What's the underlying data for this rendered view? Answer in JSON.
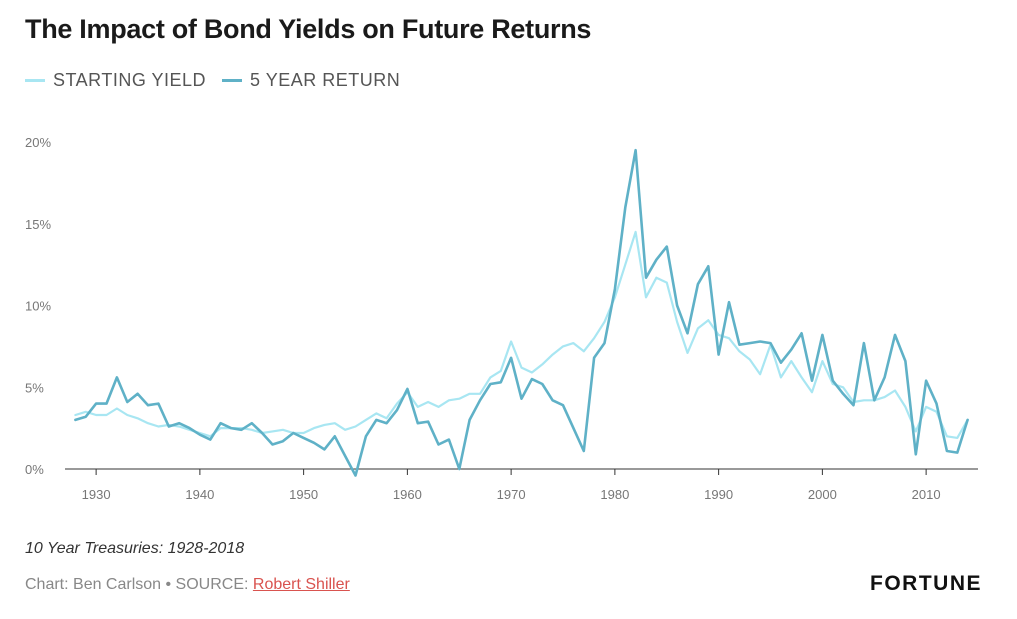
{
  "title": "The Impact of Bond Yields on Future Returns",
  "footnote": "10 Year Treasuries: 1928-2018",
  "credit": {
    "prefix": "Chart: Ben Carlson • SOURCE: ",
    "source_link": "Robert Shiller"
  },
  "brand": "FORTUNE",
  "colors": {
    "starting_yield": "#a8e6f2",
    "five_year_return": "#5fb1c7",
    "axis": "#333333",
    "tick_text": "#777777"
  },
  "chart_data": {
    "type": "line",
    "title": "The Impact of Bond Yields on Future Returns",
    "xlabel": "",
    "ylabel": "",
    "xlim": [
      1927,
      2015
    ],
    "ylim": [
      0,
      20
    ],
    "x_ticks": [
      1930,
      1940,
      1950,
      1960,
      1970,
      1980,
      1990,
      2000,
      2010
    ],
    "y_ticks": [
      0,
      5,
      10,
      15,
      20
    ],
    "y_tick_labels": [
      "0%",
      "5%",
      "10%",
      "15%",
      "20%"
    ],
    "grid": false,
    "legend_position": "top-left",
    "x": [
      1928,
      1929,
      1930,
      1931,
      1932,
      1933,
      1934,
      1935,
      1936,
      1937,
      1938,
      1939,
      1940,
      1941,
      1942,
      1943,
      1944,
      1945,
      1946,
      1947,
      1948,
      1949,
      1950,
      1951,
      1952,
      1953,
      1954,
      1955,
      1956,
      1957,
      1958,
      1959,
      1960,
      1961,
      1962,
      1963,
      1964,
      1965,
      1966,
      1967,
      1968,
      1969,
      1970,
      1971,
      1972,
      1973,
      1974,
      1975,
      1976,
      1977,
      1978,
      1979,
      1980,
      1981,
      1982,
      1983,
      1984,
      1985,
      1986,
      1987,
      1988,
      1989,
      1990,
      1991,
      1992,
      1993,
      1994,
      1995,
      1996,
      1997,
      1998,
      1999,
      2000,
      2001,
      2002,
      2003,
      2004,
      2005,
      2006,
      2007,
      2008,
      2009,
      2010,
      2011,
      2012,
      2013,
      2014
    ],
    "series": [
      {
        "name": "STARTING YIELD",
        "values": [
          3.3,
          3.5,
          3.3,
          3.3,
          3.7,
          3.3,
          3.1,
          2.8,
          2.6,
          2.7,
          2.6,
          2.4,
          2.2,
          2.0,
          2.5,
          2.5,
          2.5,
          2.4,
          2.2,
          2.3,
          2.4,
          2.2,
          2.2,
          2.5,
          2.7,
          2.8,
          2.4,
          2.6,
          3.0,
          3.4,
          3.1,
          4.0,
          4.7,
          3.8,
          4.1,
          3.8,
          4.2,
          4.3,
          4.6,
          4.6,
          5.6,
          6.0,
          7.8,
          6.2,
          5.9,
          6.4,
          7.0,
          7.5,
          7.7,
          7.2,
          8.0,
          9.0,
          10.5,
          12.5,
          14.5,
          10.5,
          11.7,
          11.4,
          9.0,
          7.1,
          8.6,
          9.1,
          8.2,
          8.0,
          7.2,
          6.7,
          5.8,
          7.6,
          5.6,
          6.6,
          5.6,
          4.7,
          6.6,
          5.2,
          5.0,
          4.1,
          4.2,
          4.2,
          4.4,
          4.8,
          3.8,
          2.3,
          3.8,
          3.5,
          2.0,
          1.9,
          3.0
        ]
      },
      {
        "name": "5 YEAR RETURN",
        "values": [
          3.0,
          3.2,
          4.0,
          4.0,
          5.6,
          4.1,
          4.6,
          3.9,
          4.0,
          2.6,
          2.8,
          2.5,
          2.1,
          1.8,
          2.8,
          2.5,
          2.4,
          2.8,
          2.2,
          1.5,
          1.7,
          2.2,
          1.9,
          1.6,
          1.2,
          2.0,
          0.8,
          -0.4,
          2.0,
          3.0,
          2.8,
          3.6,
          4.9,
          2.8,
          2.9,
          1.5,
          1.8,
          0.0,
          3.0,
          4.2,
          5.2,
          5.3,
          6.8,
          4.3,
          5.5,
          5.2,
          4.2,
          3.9,
          2.5,
          1.1,
          6.8,
          7.7,
          11.0,
          16.0,
          19.5,
          11.7,
          12.8,
          13.6,
          10.0,
          8.3,
          11.3,
          12.4,
          7.0,
          10.2,
          7.6,
          7.7,
          7.8,
          7.7,
          6.5,
          7.3,
          8.3,
          5.4,
          8.2,
          5.4,
          4.6,
          3.9,
          7.7,
          4.2,
          5.6,
          8.2,
          6.6,
          0.9,
          5.4,
          4.0,
          1.1,
          1.0,
          3.0
        ]
      }
    ]
  }
}
